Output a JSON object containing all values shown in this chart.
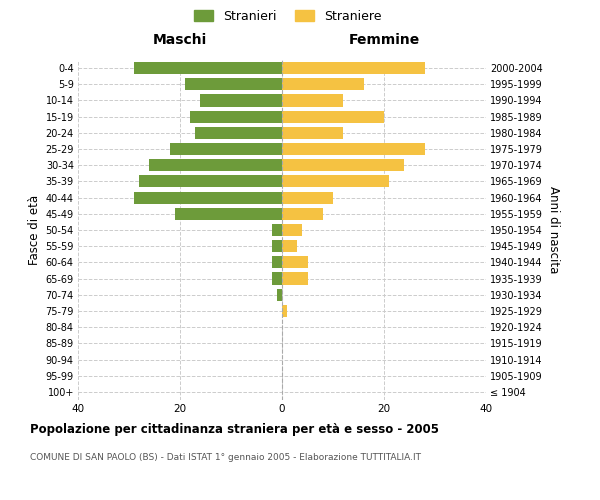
{
  "age_groups": [
    "100+",
    "95-99",
    "90-94",
    "85-89",
    "80-84",
    "75-79",
    "70-74",
    "65-69",
    "60-64",
    "55-59",
    "50-54",
    "45-49",
    "40-44",
    "35-39",
    "30-34",
    "25-29",
    "20-24",
    "15-19",
    "10-14",
    "5-9",
    "0-4"
  ],
  "birth_years": [
    "≤ 1904",
    "1905-1909",
    "1910-1914",
    "1915-1919",
    "1920-1924",
    "1925-1929",
    "1930-1934",
    "1935-1939",
    "1940-1944",
    "1945-1949",
    "1950-1954",
    "1955-1959",
    "1960-1964",
    "1965-1969",
    "1970-1974",
    "1975-1979",
    "1980-1984",
    "1985-1989",
    "1990-1994",
    "1995-1999",
    "2000-2004"
  ],
  "maschi": [
    0,
    0,
    0,
    0,
    0,
    0,
    1,
    2,
    2,
    2,
    2,
    21,
    29,
    28,
    26,
    22,
    17,
    18,
    16,
    19,
    29
  ],
  "femmine": [
    0,
    0,
    0,
    0,
    0,
    1,
    0,
    5,
    5,
    3,
    4,
    8,
    10,
    21,
    24,
    28,
    12,
    20,
    12,
    16,
    28
  ],
  "maschi_color": "#6d9b3a",
  "femmine_color": "#f5c242",
  "background_color": "#ffffff",
  "grid_color": "#cccccc",
  "title": "Popolazione per cittadinanza straniera per età e sesso - 2005",
  "subtitle": "COMUNE DI SAN PAOLO (BS) - Dati ISTAT 1° gennaio 2005 - Elaborazione TUTTITALIA.IT",
  "ylabel_left": "Fasce di età",
  "ylabel_right": "Anni di nascita",
  "xlabel_left": "Maschi",
  "xlabel_right": "Femmine",
  "legend_stranieri": "Stranieri",
  "legend_straniere": "Straniere",
  "xlim": 40
}
